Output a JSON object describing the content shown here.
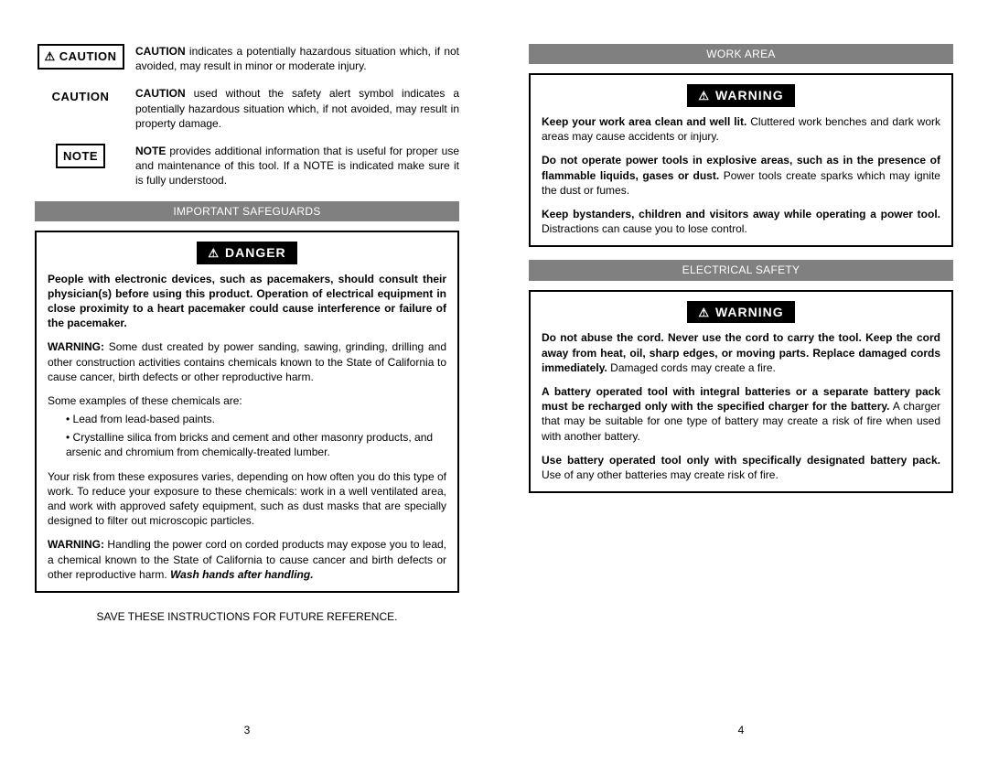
{
  "colors": {
    "header_bg": "#808080",
    "banner_bg": "#000000",
    "text": "#000000"
  },
  "left": {
    "defs": [
      {
        "label": "CAUTION",
        "boxed": true,
        "icon": true,
        "text_html": "<b>CAUTION</b> indicates a potentially hazardous situation which, if not avoided, may result in minor or moderate injury."
      },
      {
        "label": "CAUTION",
        "boxed": false,
        "icon": false,
        "text_html": "<b>CAUTION</b> used without the safety alert symbol indicates a potentially hazardous situation which, if not avoided, may result in property damage."
      },
      {
        "label": "NOTE",
        "boxed": true,
        "icon": false,
        "text_html": "<b>NOTE</b> provides additional information that is useful for proper use and maintenance of this tool. If a NOTE is indicated make sure it is fully understood."
      }
    ],
    "section_header": "IMPORTANT SAFEGUARDS",
    "danger_banner": "DANGER",
    "danger_paras": [
      "<b>People with electronic devices, such as pacemakers, should consult their physician(s) before using this product. Operation of electrical equipment in close proximity to a heart pacemaker could cause interference or failure of the pacemaker.</b>",
      "<b>WARNING:</b> Some dust created by power sanding, sawing, grinding, drilling and other construction activities contains chemicals known to the State of California to cause cancer, birth defects or other reproductive harm."
    ],
    "examples_lead": "Some examples of these chemicals are:",
    "bullets": [
      "Lead from lead-based paints.",
      "Crystalline silica from bricks and cement and other masonry products, and arsenic and chromium from chemically-treated lumber."
    ],
    "risk_para": "Your risk from these exposures varies, depending on how often you do this type of work. To reduce your exposure to these chemicals: work in a well ventilated area, and work with approved safety equipment, such as dust masks that are specially designed to filter out microscopic particles.",
    "cord_para_html": "<b>WARNING:</b> Handling the power cord on corded products may expose you to lead, a chemical known to the State of California to cause cancer and birth defects or other reproductive harm. <span class='italic'>Wash hands after handling.</span>",
    "save_line": "SAVE THESE INSTRUCTIONS FOR FUTURE REFERENCE.",
    "page_num": "3"
  },
  "right": {
    "work_area": {
      "header": "WORK AREA",
      "banner": "WARNING",
      "paras": [
        "<b>Keep your work area clean and well lit.</b> Cluttered work benches and dark work areas may cause accidents or injury.",
        "<b>Do not operate power tools in explosive areas, such as in the presence of flammable liquids, gases or dust.</b> Power tools create sparks which may ignite the dust or fumes.",
        "<b>Keep bystanders, children and visitors away while operating a power tool.</b> Distractions can cause you to lose control."
      ]
    },
    "electrical": {
      "header": "ELECTRICAL SAFETY",
      "banner": "WARNING",
      "paras": [
        "<b>Do not abuse the cord. Never use the cord to carry the tool. Keep the cord away from heat, oil, sharp edges, or moving parts. Replace damaged cords immediately.</b> Damaged cords may create a fire.",
        "<b>A battery operated tool with integral batteries or a separate battery pack must be recharged only with the specified charger for the battery.</b> A charger that may be suitable for one type of battery may create a risk of fire when used with another battery.",
        "<b>Use battery operated tool only with specifically designated battery pack.</b> Use of any other batteries may create risk of fire."
      ]
    },
    "page_num": "4"
  }
}
